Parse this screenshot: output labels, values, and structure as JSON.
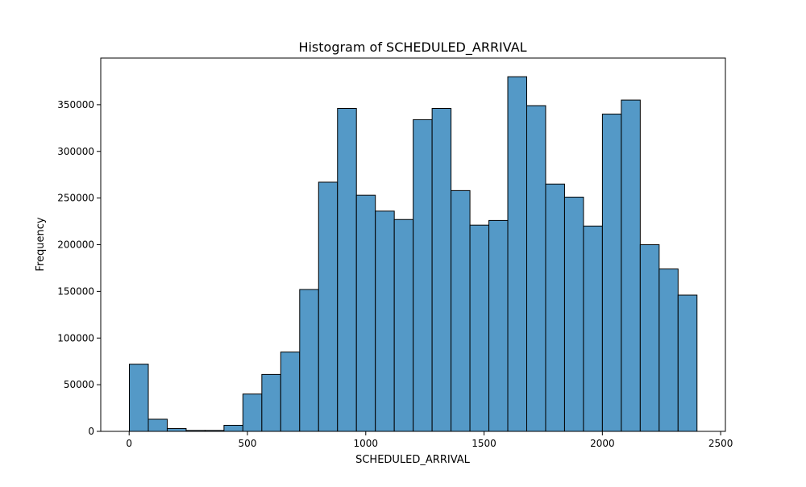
{
  "chart_data": {
    "type": "bar",
    "title": "Histogram of SCHEDULED_ARRIVAL",
    "xlabel": "SCHEDULED_ARRIVAL",
    "ylabel": "Frequency",
    "xlim": [
      -120,
      2520
    ],
    "ylim": [
      0,
      400000
    ],
    "xticks": [
      0,
      500,
      1000,
      1500,
      2000,
      2500
    ],
    "yticks": [
      0,
      50000,
      100000,
      150000,
      200000,
      250000,
      300000,
      350000
    ],
    "bins": [
      {
        "x0": 1,
        "x1": 80.97,
        "value": 72000
      },
      {
        "x0": 80.97,
        "x1": 160.93,
        "value": 13000
      },
      {
        "x0": 160.93,
        "x1": 240.9,
        "value": 3000
      },
      {
        "x0": 240.9,
        "x1": 320.87,
        "value": 1000
      },
      {
        "x0": 320.87,
        "x1": 400.83,
        "value": 1000
      },
      {
        "x0": 400.83,
        "x1": 480.8,
        "value": 6500
      },
      {
        "x0": 480.8,
        "x1": 560.77,
        "value": 40000
      },
      {
        "x0": 560.77,
        "x1": 640.73,
        "value": 61000
      },
      {
        "x0": 640.73,
        "x1": 720.7,
        "value": 85000
      },
      {
        "x0": 720.7,
        "x1": 800.67,
        "value": 152000
      },
      {
        "x0": 800.67,
        "x1": 880.63,
        "value": 267000
      },
      {
        "x0": 880.63,
        "x1": 960.6,
        "value": 346000
      },
      {
        "x0": 960.6,
        "x1": 1040.57,
        "value": 253000
      },
      {
        "x0": 1040.57,
        "x1": 1120.53,
        "value": 236000
      },
      {
        "x0": 1120.53,
        "x1": 1200.5,
        "value": 227000
      },
      {
        "x0": 1200.5,
        "x1": 1280.47,
        "value": 334000
      },
      {
        "x0": 1280.47,
        "x1": 1360.43,
        "value": 346000
      },
      {
        "x0": 1360.43,
        "x1": 1440.4,
        "value": 258000
      },
      {
        "x0": 1440.4,
        "x1": 1520.37,
        "value": 221000
      },
      {
        "x0": 1520.37,
        "x1": 1600.33,
        "value": 226000
      },
      {
        "x0": 1600.33,
        "x1": 1680.3,
        "value": 380000
      },
      {
        "x0": 1680.3,
        "x1": 1760.27,
        "value": 349000
      },
      {
        "x0": 1760.27,
        "x1": 1840.23,
        "value": 265000
      },
      {
        "x0": 1840.23,
        "x1": 1920.2,
        "value": 251000
      },
      {
        "x0": 1920.2,
        "x1": 2000.17,
        "value": 220000
      },
      {
        "x0": 2000.17,
        "x1": 2080.13,
        "value": 340000
      },
      {
        "x0": 2080.13,
        "x1": 2160.1,
        "value": 355000
      },
      {
        "x0": 2160.1,
        "x1": 2240.07,
        "value": 200000
      },
      {
        "x0": 2240.07,
        "x1": 2320.03,
        "value": 174000
      },
      {
        "x0": 2320.03,
        "x1": 2400,
        "value": 146000
      }
    ],
    "bar_color": "#5499c7",
    "edge_color": "#000000",
    "grid": false,
    "legend": "none"
  }
}
